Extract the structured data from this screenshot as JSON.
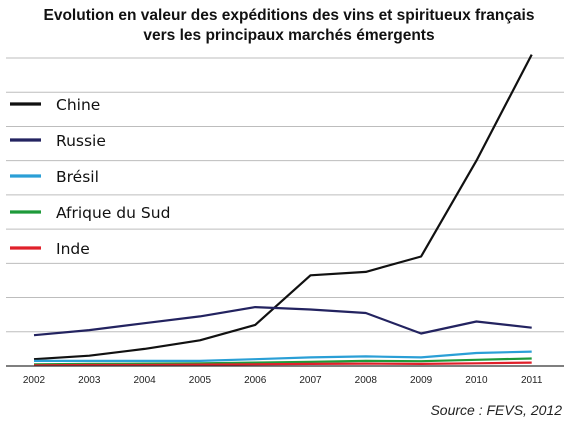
{
  "title_lines": [
    "Evolution en valeur des expéditions des vins et spiritueux français",
    "vers les principaux marchés émergents"
  ],
  "source": "Source : FEVS, 2012",
  "chart_data": {
    "type": "line",
    "title": "Evolution en valeur des expéditions des vins et spiritueux français vers les principaux marchés émergents",
    "xlabel": "",
    "ylabel": "",
    "x": [
      "2002",
      "2003",
      "2004",
      "2005",
      "2006",
      "2007",
      "2008",
      "2009",
      "2010",
      "2011"
    ],
    "ylim": [
      0,
      9
    ],
    "grid": true,
    "y_tick_labels_shown": false,
    "legend_position": "top-left",
    "series": [
      {
        "name": "Chine",
        "color": "#111111",
        "values": [
          0.2,
          0.3,
          0.5,
          0.75,
          1.2,
          2.65,
          2.75,
          3.2,
          6.0,
          9.1
        ]
      },
      {
        "name": "Russie",
        "color": "#232360",
        "values": [
          0.9,
          1.05,
          1.25,
          1.45,
          1.72,
          1.65,
          1.55,
          0.95,
          1.3,
          1.12
        ]
      },
      {
        "name": "Brésil",
        "color": "#2a9fd6",
        "values": [
          0.15,
          0.15,
          0.15,
          0.15,
          0.2,
          0.25,
          0.28,
          0.25,
          0.38,
          0.42
        ]
      },
      {
        "name": "Afrique du Sud",
        "color": "#1e9a3a",
        "values": [
          0.05,
          0.06,
          0.07,
          0.08,
          0.1,
          0.12,
          0.15,
          0.14,
          0.18,
          0.22
        ]
      },
      {
        "name": "Inde",
        "color": "#e0202a",
        "values": [
          0.02,
          0.03,
          0.03,
          0.04,
          0.05,
          0.06,
          0.07,
          0.06,
          0.08,
          0.1
        ]
      }
    ]
  }
}
